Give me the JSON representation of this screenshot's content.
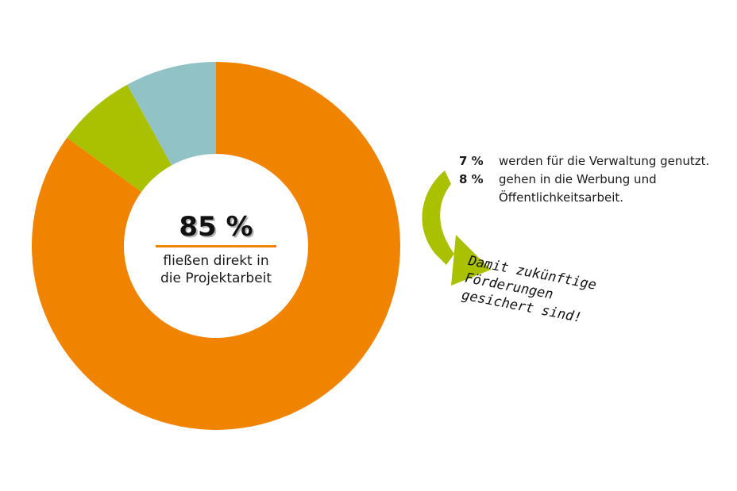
{
  "chart_data": {
    "type": "pie",
    "donut": true,
    "categories": [
      "fließen direkt in die Projektarbeit",
      "werden für die Verwaltung genutzt.",
      "gehen in die Werbung und Öffentlichkeitsarbeit."
    ],
    "values": [
      85,
      7,
      8
    ],
    "value_labels": [
      "85 %",
      "7 %",
      "8 %"
    ],
    "colors": [
      "#f08300",
      "#a9c100",
      "#91c3c6"
    ],
    "center_value": "85 %",
    "center_caption_line1": "fließen direkt in",
    "center_caption_line2": "die Projektarbeit",
    "legend": [
      {
        "value": "7 %",
        "text_line1": "werden für die Verwaltung genutzt.",
        "text_line2": ""
      },
      {
        "value": "8 %",
        "text_line1": "gehen in die Werbung und",
        "text_line2": "Öffentlichkeitsarbeit."
      }
    ],
    "annotation": {
      "lines": [
        "Damit zukünftige",
        "Förderungen",
        "gesichert sind!"
      ],
      "arrow_color": "#a9c100",
      "arrow_icon": "curved-arrow-icon"
    }
  }
}
